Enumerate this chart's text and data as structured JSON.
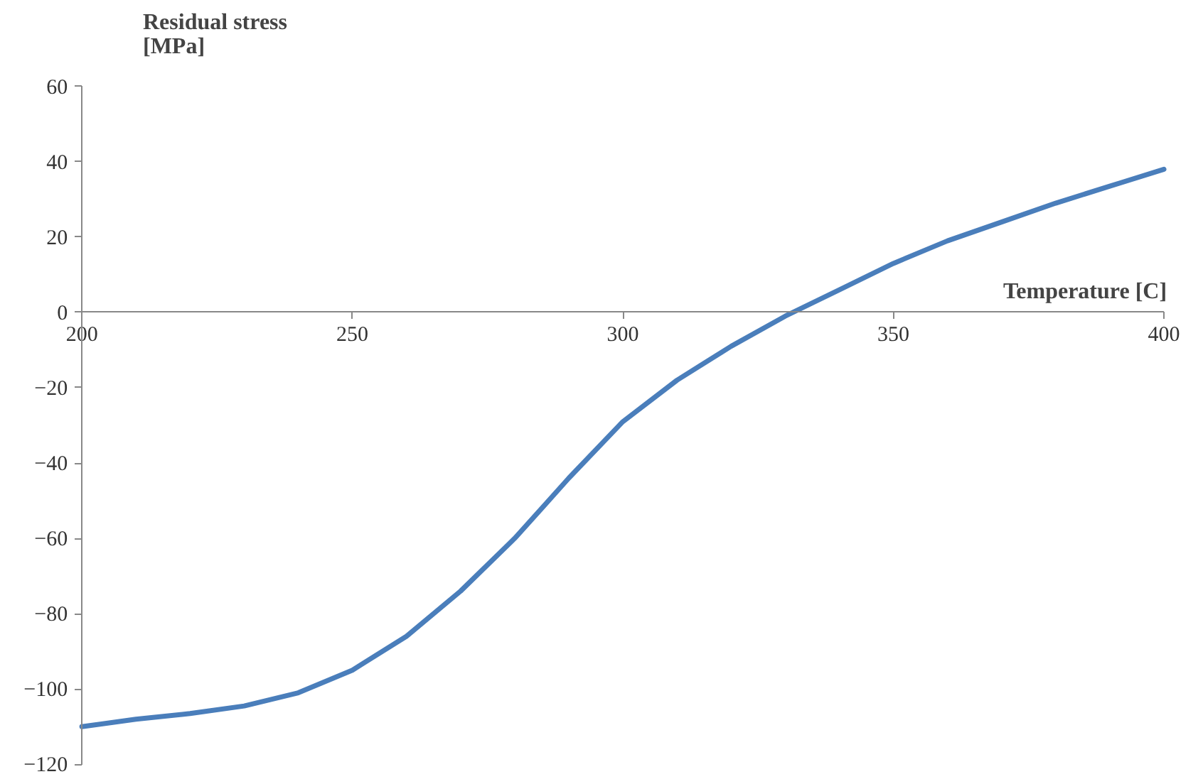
{
  "chart_data": {
    "type": "line",
    "xlabel": "Temperature [C]",
    "ylabel": "Residual stress\n[MPa]",
    "x": [
      200,
      210,
      220,
      230,
      240,
      250,
      260,
      270,
      280,
      290,
      300,
      310,
      320,
      330,
      340,
      350,
      360,
      370,
      380,
      390,
      400
    ],
    "series": [
      {
        "color": "#4a7ebb",
        "values": [
          -110,
          -108,
          -106.5,
          -104.5,
          -101,
          -95,
          -86,
          -74,
          -60,
          -44,
          -29,
          -18,
          -9,
          -1,
          6,
          13,
          19,
          24,
          29,
          33.5,
          38
        ]
      }
    ],
    "xlim": [
      200,
      400
    ],
    "ylim": [
      -120,
      60
    ],
    "xticks": [
      200,
      250,
      300,
      350,
      400
    ],
    "yticks": [
      -120,
      -100,
      -80,
      -60,
      -40,
      -20,
      0,
      20,
      40,
      60
    ],
    "grid": false,
    "marker": "none",
    "line_style": "solid"
  }
}
